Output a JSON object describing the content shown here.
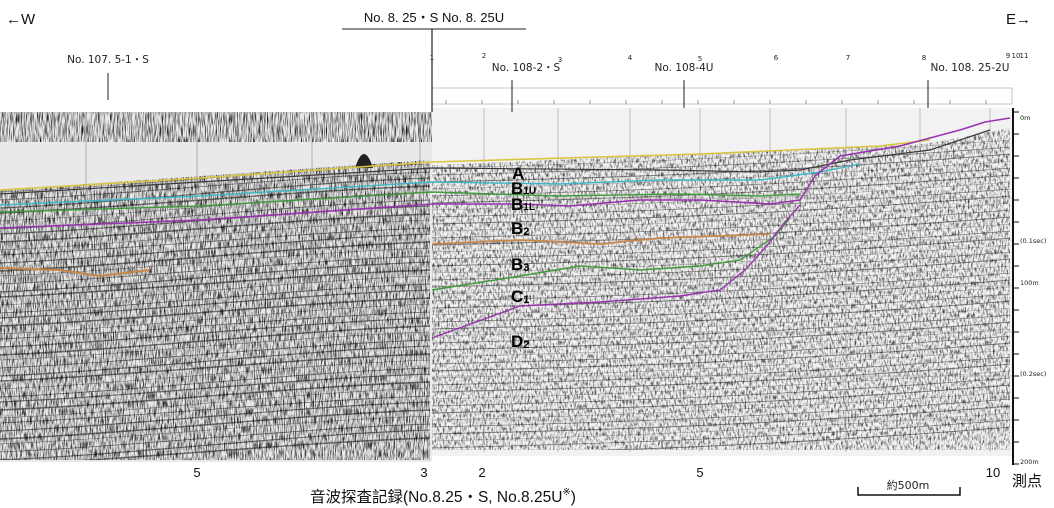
{
  "header": {
    "west": "←W",
    "east": "E→",
    "center_label": "No. 8. 25・S  No. 8. 25U"
  },
  "stations": [
    {
      "label": "No. 107. 5-1・S"
    },
    {
      "label": "No. 108-2・S"
    },
    {
      "label": "No. 108-4U"
    },
    {
      "label": "No. 108. 25-2U"
    }
  ],
  "top_small_numbers": [
    "1",
    "2",
    "3",
    "4",
    "5",
    "6",
    "7",
    "8",
    "9",
    "10",
    "11"
  ],
  "layers": [
    "A",
    "B1U",
    "B1L",
    "B2",
    "B3",
    "C1",
    "D2"
  ],
  "layer_display": {
    "A": {
      "base": "A",
      "sub": ""
    },
    "B1U": {
      "base": "B",
      "sub": "1U"
    },
    "B1L": {
      "base": "B",
      "sub": "1L"
    },
    "B2": {
      "base": "B",
      "sub": "2"
    },
    "B3": {
      "base": "B",
      "sub": "3"
    },
    "C1": {
      "base": "C",
      "sub": "1"
    },
    "D2": {
      "base": "D",
      "sub": "2"
    }
  },
  "depth_axis": [
    {
      "label": "0m"
    },
    {
      "label": "(0.1sec)"
    },
    {
      "label": "100m"
    },
    {
      "label": "(0.2sec)"
    },
    {
      "label": "200m"
    }
  ],
  "bottom_points": [
    "5",
    "3",
    "2",
    "5",
    "10"
  ],
  "bottom_unit": "測点",
  "caption": "音波探査記録(No.8.25・S, No.8.25U",
  "caption_mark": "※",
  "caption_close": ")",
  "scale_label": "約500m",
  "colors": {
    "yellow": "#d8c640",
    "cyan": "#3fb7c9",
    "green": "#3f9a3c",
    "magenta": "#9a32b0",
    "orange": "#c8874a"
  }
}
